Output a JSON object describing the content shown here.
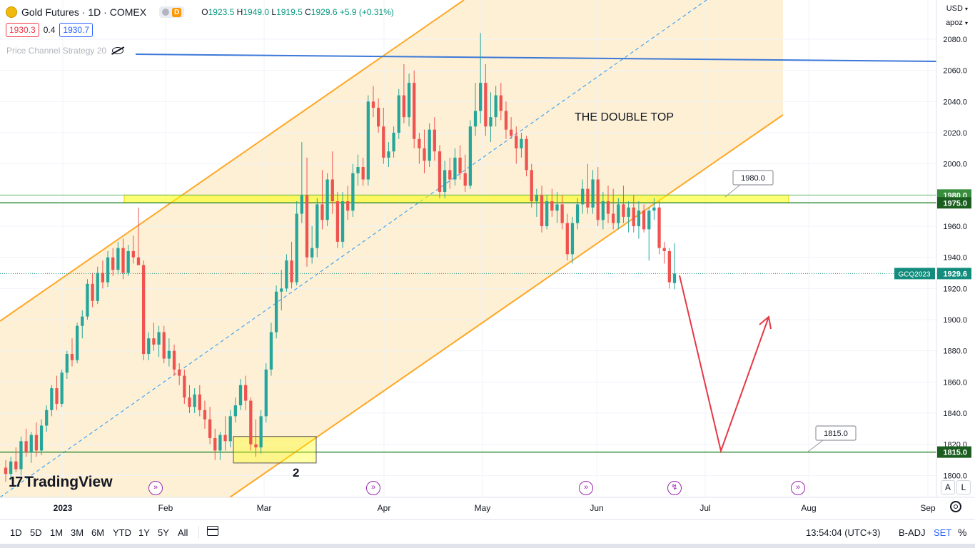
{
  "header": {
    "title": "Gold Futures · 1D · COMEX",
    "symbol_icon": "gold-coin-icon",
    "badge_letter": "D",
    "ohlc": {
      "o_label": "O",
      "o": "1923.5",
      "h_label": "H",
      "h": "1949.0",
      "l_label": "L",
      "l": "1919.5",
      "c_label": "C",
      "c": "1929.6",
      "change": "+5.9 (+0.31%)"
    },
    "sell_price": "1930.3",
    "spread": "0.4",
    "buy_price": "1930.7",
    "indicator": "Price Channel Strategy 20"
  },
  "axis_controls": {
    "currency": "USD",
    "scale": "apoz"
  },
  "price_axis": {
    "ticks": [
      "2080.0",
      "2060.0",
      "2040.0",
      "2020.0",
      "2000.0",
      "1980.0",
      "1960.0",
      "1940.0",
      "1920.0",
      "1900.0",
      "1880.0",
      "1860.0",
      "1840.0",
      "1820.0",
      "1800.0"
    ]
  },
  "time_axis": {
    "ticks": [
      "2023",
      "Feb",
      "Mar",
      "Apr",
      "May",
      "Jun",
      "Jul",
      "Aug",
      "Sep"
    ]
  },
  "price_labels": {
    "resistance_top": "1980.0",
    "resistance": "1975.0",
    "support": "1815.0",
    "current_symbol": "GCQ2023",
    "current": "1929.6"
  },
  "callouts": {
    "upper": "1980.0",
    "lower": "1815.0"
  },
  "annotations": {
    "double_top": "THE DOUBLE TOP",
    "point_2": "2"
  },
  "logo": "TradingView",
  "toolbar": {
    "ranges": [
      "1D",
      "5D",
      "1M",
      "3M",
      "6M",
      "YTD",
      "1Y",
      "5Y",
      "All"
    ],
    "time": "13:54:04 (UTC+3)",
    "adj": "B-ADJ",
    "set": "SET",
    "pct": "%",
    "auto": "A",
    "log": "L"
  },
  "colors": {
    "up": "#26a69a",
    "down": "#ef5350",
    "channel": "#ffa726",
    "channel_fill": "#fdf0d5",
    "support": "#388e3c",
    "level_blue": "#3c78d8",
    "highlight_zone": "#ffff00",
    "projection": "#e53945",
    "current": "#138c7d"
  },
  "chart_data": {
    "type": "candlestick",
    "symbol": "GCQ2023",
    "timeframe": "1D",
    "y_range": [
      1792,
      2100
    ],
    "candles": [
      {
        "o": 1805,
        "h": 1810,
        "l": 1796,
        "c": 1801
      },
      {
        "o": 1801,
        "h": 1812,
        "l": 1797,
        "c": 1809
      },
      {
        "o": 1809,
        "h": 1818,
        "l": 1802,
        "c": 1804
      },
      {
        "o": 1804,
        "h": 1825,
        "l": 1800,
        "c": 1822
      },
      {
        "o": 1822,
        "h": 1830,
        "l": 1812,
        "c": 1815
      },
      {
        "o": 1815,
        "h": 1828,
        "l": 1808,
        "c": 1826
      },
      {
        "o": 1826,
        "h": 1834,
        "l": 1812,
        "c": 1816
      },
      {
        "o": 1816,
        "h": 1836,
        "l": 1813,
        "c": 1832
      },
      {
        "o": 1832,
        "h": 1845,
        "l": 1828,
        "c": 1842
      },
      {
        "o": 1842,
        "h": 1858,
        "l": 1838,
        "c": 1856
      },
      {
        "o": 1856,
        "h": 1864,
        "l": 1842,
        "c": 1846
      },
      {
        "o": 1846,
        "h": 1868,
        "l": 1844,
        "c": 1866
      },
      {
        "o": 1866,
        "h": 1880,
        "l": 1862,
        "c": 1878
      },
      {
        "o": 1878,
        "h": 1888,
        "l": 1870,
        "c": 1874
      },
      {
        "o": 1874,
        "h": 1898,
        "l": 1872,
        "c": 1896
      },
      {
        "o": 1896,
        "h": 1906,
        "l": 1888,
        "c": 1902
      },
      {
        "o": 1902,
        "h": 1926,
        "l": 1900,
        "c": 1923
      },
      {
        "o": 1923,
        "h": 1930,
        "l": 1908,
        "c": 1912
      },
      {
        "o": 1912,
        "h": 1934,
        "l": 1910,
        "c": 1930
      },
      {
        "o": 1930,
        "h": 1938,
        "l": 1920,
        "c": 1924
      },
      {
        "o": 1924,
        "h": 1944,
        "l": 1921,
        "c": 1940
      },
      {
        "o": 1940,
        "h": 1946,
        "l": 1928,
        "c": 1932
      },
      {
        "o": 1932,
        "h": 1950,
        "l": 1929,
        "c": 1946
      },
      {
        "o": 1946,
        "h": 1952,
        "l": 1926,
        "c": 1930
      },
      {
        "o": 1930,
        "h": 1948,
        "l": 1928,
        "c": 1944
      },
      {
        "o": 1944,
        "h": 1954,
        "l": 1936,
        "c": 1940
      },
      {
        "o": 1940,
        "h": 1972,
        "l": 1936,
        "c": 1935
      },
      {
        "o": 1935,
        "h": 1938,
        "l": 1874,
        "c": 1878
      },
      {
        "o": 1878,
        "h": 1892,
        "l": 1874,
        "c": 1888
      },
      {
        "o": 1888,
        "h": 1898,
        "l": 1880,
        "c": 1884
      },
      {
        "o": 1884,
        "h": 1896,
        "l": 1876,
        "c": 1892
      },
      {
        "o": 1892,
        "h": 1896,
        "l": 1872,
        "c": 1875
      },
      {
        "o": 1875,
        "h": 1888,
        "l": 1870,
        "c": 1880
      },
      {
        "o": 1880,
        "h": 1884,
        "l": 1864,
        "c": 1868
      },
      {
        "o": 1868,
        "h": 1872,
        "l": 1858,
        "c": 1864
      },
      {
        "o": 1864,
        "h": 1868,
        "l": 1846,
        "c": 1850
      },
      {
        "o": 1850,
        "h": 1858,
        "l": 1840,
        "c": 1844
      },
      {
        "o": 1844,
        "h": 1856,
        "l": 1840,
        "c": 1852
      },
      {
        "o": 1852,
        "h": 1858,
        "l": 1838,
        "c": 1842
      },
      {
        "o": 1842,
        "h": 1848,
        "l": 1830,
        "c": 1836
      },
      {
        "o": 1836,
        "h": 1844,
        "l": 1820,
        "c": 1824
      },
      {
        "o": 1824,
        "h": 1830,
        "l": 1810,
        "c": 1816
      },
      {
        "o": 1816,
        "h": 1828,
        "l": 1810,
        "c": 1826
      },
      {
        "o": 1826,
        "h": 1838,
        "l": 1816,
        "c": 1822
      },
      {
        "o": 1822,
        "h": 1842,
        "l": 1818,
        "c": 1838
      },
      {
        "o": 1838,
        "h": 1850,
        "l": 1834,
        "c": 1845
      },
      {
        "o": 1845,
        "h": 1862,
        "l": 1842,
        "c": 1858
      },
      {
        "o": 1858,
        "h": 1864,
        "l": 1842,
        "c": 1848
      },
      {
        "o": 1848,
        "h": 1850,
        "l": 1816,
        "c": 1820
      },
      {
        "o": 1820,
        "h": 1836,
        "l": 1812,
        "c": 1818
      },
      {
        "o": 1818,
        "h": 1842,
        "l": 1814,
        "c": 1838
      },
      {
        "o": 1838,
        "h": 1872,
        "l": 1834,
        "c": 1868
      },
      {
        "o": 1868,
        "h": 1898,
        "l": 1864,
        "c": 1892
      },
      {
        "o": 1892,
        "h": 1922,
        "l": 1888,
        "c": 1918
      },
      {
        "o": 1918,
        "h": 1932,
        "l": 1906,
        "c": 1920
      },
      {
        "o": 1920,
        "h": 1942,
        "l": 1918,
        "c": 1938
      },
      {
        "o": 1938,
        "h": 1950,
        "l": 1920,
        "c": 1924
      },
      {
        "o": 1924,
        "h": 1976,
        "l": 1922,
        "c": 1968
      },
      {
        "o": 1968,
        "h": 2014,
        "l": 1962,
        "c": 1980
      },
      {
        "o": 1980,
        "h": 2004,
        "l": 1934,
        "c": 1940
      },
      {
        "o": 1940,
        "h": 1960,
        "l": 1936,
        "c": 1946
      },
      {
        "o": 1946,
        "h": 1978,
        "l": 1940,
        "c": 1974
      },
      {
        "o": 1974,
        "h": 1996,
        "l": 1958,
        "c": 1964
      },
      {
        "o": 1964,
        "h": 1994,
        "l": 1960,
        "c": 1990
      },
      {
        "o": 1990,
        "h": 2008,
        "l": 1968,
        "c": 1976
      },
      {
        "o": 1976,
        "h": 1982,
        "l": 1946,
        "c": 1950
      },
      {
        "o": 1950,
        "h": 1982,
        "l": 1946,
        "c": 1976
      },
      {
        "o": 1976,
        "h": 1986,
        "l": 1964,
        "c": 1970
      },
      {
        "o": 1970,
        "h": 2000,
        "l": 1966,
        "c": 1994
      },
      {
        "o": 1994,
        "h": 2006,
        "l": 1986,
        "c": 1998
      },
      {
        "o": 1998,
        "h": 2004,
        "l": 1986,
        "c": 1990
      },
      {
        "o": 1990,
        "h": 2044,
        "l": 1986,
        "c": 2040
      },
      {
        "o": 2040,
        "h": 2050,
        "l": 2030,
        "c": 2036
      },
      {
        "o": 2036,
        "h": 2042,
        "l": 2020,
        "c": 2024
      },
      {
        "o": 2024,
        "h": 2036,
        "l": 2000,
        "c": 2004
      },
      {
        "o": 2004,
        "h": 2014,
        "l": 1998,
        "c": 2008
      },
      {
        "o": 2008,
        "h": 2024,
        "l": 2004,
        "c": 2020
      },
      {
        "o": 2020,
        "h": 2048,
        "l": 2016,
        "c": 2044
      },
      {
        "o": 2044,
        "h": 2064,
        "l": 2026,
        "c": 2030
      },
      {
        "o": 2030,
        "h": 2058,
        "l": 2024,
        "c": 2052
      },
      {
        "o": 2052,
        "h": 2060,
        "l": 2010,
        "c": 2016
      },
      {
        "o": 2016,
        "h": 2020,
        "l": 2000,
        "c": 2010
      },
      {
        "o": 2010,
        "h": 2022,
        "l": 1994,
        "c": 2002
      },
      {
        "o": 2002,
        "h": 2026,
        "l": 1998,
        "c": 2022
      },
      {
        "o": 2022,
        "h": 2030,
        "l": 2002,
        "c": 2008
      },
      {
        "o": 2008,
        "h": 2012,
        "l": 1978,
        "c": 1982
      },
      {
        "o": 1982,
        "h": 2002,
        "l": 1978,
        "c": 1996
      },
      {
        "o": 1996,
        "h": 2004,
        "l": 1984,
        "c": 1990
      },
      {
        "o": 1990,
        "h": 2010,
        "l": 1986,
        "c": 2004
      },
      {
        "o": 2004,
        "h": 2012,
        "l": 1990,
        "c": 1994
      },
      {
        "o": 1994,
        "h": 2006,
        "l": 1982,
        "c": 1986
      },
      {
        "o": 1986,
        "h": 2028,
        "l": 1984,
        "c": 2024
      },
      {
        "o": 2024,
        "h": 2052,
        "l": 2018,
        "c": 2034
      },
      {
        "o": 2034,
        "h": 2084,
        "l": 2026,
        "c": 2052
      },
      {
        "o": 2052,
        "h": 2064,
        "l": 2018,
        "c": 2024
      },
      {
        "o": 2024,
        "h": 2046,
        "l": 2014,
        "c": 2030
      },
      {
        "o": 2030,
        "h": 2050,
        "l": 2024,
        "c": 2044
      },
      {
        "o": 2044,
        "h": 2052,
        "l": 2028,
        "c": 2034
      },
      {
        "o": 2034,
        "h": 2040,
        "l": 2016,
        "c": 2022
      },
      {
        "o": 2022,
        "h": 2030,
        "l": 2016,
        "c": 2018
      },
      {
        "o": 2018,
        "h": 2024,
        "l": 2000,
        "c": 2010
      },
      {
        "o": 2010,
        "h": 2020,
        "l": 2004,
        "c": 2016
      },
      {
        "o": 2016,
        "h": 2018,
        "l": 1992,
        "c": 1996
      },
      {
        "o": 1996,
        "h": 2000,
        "l": 1972,
        "c": 1976
      },
      {
        "o": 1976,
        "h": 1984,
        "l": 1966,
        "c": 1980
      },
      {
        "o": 1980,
        "h": 1986,
        "l": 1956,
        "c": 1960
      },
      {
        "o": 1960,
        "h": 1980,
        "l": 1958,
        "c": 1976
      },
      {
        "o": 1976,
        "h": 1984,
        "l": 1966,
        "c": 1970
      },
      {
        "o": 1970,
        "h": 1982,
        "l": 1962,
        "c": 1974
      },
      {
        "o": 1974,
        "h": 1980,
        "l": 1958,
        "c": 1962
      },
      {
        "o": 1962,
        "h": 1968,
        "l": 1938,
        "c": 1942
      },
      {
        "o": 1942,
        "h": 1966,
        "l": 1936,
        "c": 1962
      },
      {
        "o": 1962,
        "h": 1978,
        "l": 1958,
        "c": 1974
      },
      {
        "o": 1974,
        "h": 1990,
        "l": 1968,
        "c": 1984
      },
      {
        "o": 1984,
        "h": 2000,
        "l": 1968,
        "c": 1972
      },
      {
        "o": 1972,
        "h": 1996,
        "l": 1968,
        "c": 1990
      },
      {
        "o": 1990,
        "h": 1998,
        "l": 1960,
        "c": 1964
      },
      {
        "o": 1964,
        "h": 1982,
        "l": 1958,
        "c": 1976
      },
      {
        "o": 1976,
        "h": 1986,
        "l": 1962,
        "c": 1968
      },
      {
        "o": 1968,
        "h": 1984,
        "l": 1958,
        "c": 1962
      },
      {
        "o": 1962,
        "h": 1978,
        "l": 1958,
        "c": 1974
      },
      {
        "o": 1974,
        "h": 1986,
        "l": 1962,
        "c": 1966
      },
      {
        "o": 1966,
        "h": 1976,
        "l": 1956,
        "c": 1972
      },
      {
        "o": 1972,
        "h": 1980,
        "l": 1956,
        "c": 1960
      },
      {
        "o": 1960,
        "h": 1976,
        "l": 1952,
        "c": 1970
      },
      {
        "o": 1970,
        "h": 1974,
        "l": 1956,
        "c": 1958
      },
      {
        "o": 1958,
        "h": 1972,
        "l": 1938,
        "c": 1970
      },
      {
        "o": 1970,
        "h": 1978,
        "l": 1964,
        "c": 1972
      },
      {
        "o": 1972,
        "h": 1976,
        "l": 1942,
        "c": 1946
      },
      {
        "o": 1946,
        "h": 1950,
        "l": 1936,
        "c": 1944
      },
      {
        "o": 1944,
        "h": 1946,
        "l": 1920,
        "c": 1924
      },
      {
        "o": 1923.5,
        "h": 1949.0,
        "l": 1919.5,
        "c": 1929.6
      }
    ]
  }
}
